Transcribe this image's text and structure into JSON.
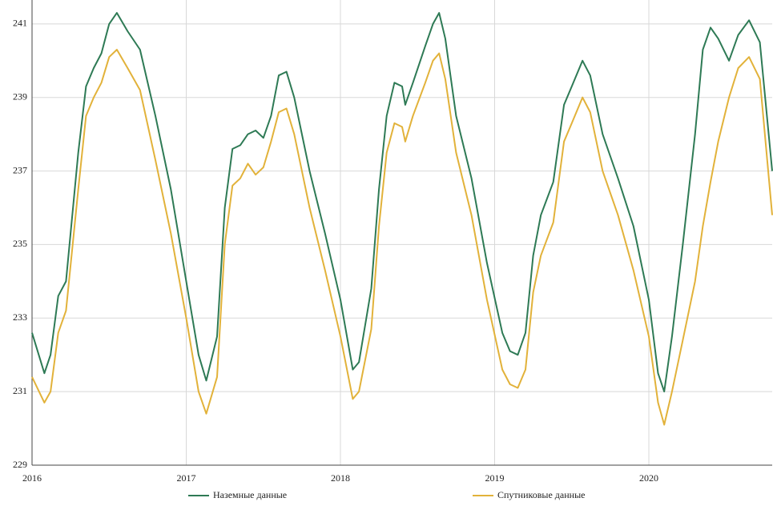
{
  "chart_data": {
    "type": "line",
    "x": [
      2016.0,
      2016.08,
      2016.12,
      2016.17,
      2016.22,
      2016.3,
      2016.35,
      2016.4,
      2016.45,
      2016.5,
      2016.55,
      2016.62,
      2016.7,
      2016.8,
      2016.9,
      2017.0,
      2017.08,
      2017.13,
      2017.2,
      2017.25,
      2017.3,
      2017.35,
      2017.4,
      2017.45,
      2017.5,
      2017.55,
      2017.6,
      2017.65,
      2017.7,
      2017.8,
      2017.9,
      2018.0,
      2018.08,
      2018.12,
      2018.2,
      2018.25,
      2018.3,
      2018.35,
      2018.4,
      2018.42,
      2018.47,
      2018.55,
      2018.6,
      2018.64,
      2018.68,
      2018.75,
      2018.85,
      2018.95,
      2019.05,
      2019.1,
      2019.15,
      2019.2,
      2019.25,
      2019.3,
      2019.38,
      2019.45,
      2019.5,
      2019.57,
      2019.62,
      2019.7,
      2019.8,
      2019.9,
      2020.0,
      2020.06,
      2020.1,
      2020.15,
      2020.22,
      2020.3,
      2020.35,
      2020.4,
      2020.45,
      2020.52,
      2020.58,
      2020.65,
      2020.72,
      2020.8
    ],
    "series": [
      {
        "name": "Наземные данные",
        "color": "#2e7a55",
        "values": [
          232.6,
          231.5,
          232.0,
          233.6,
          234.0,
          237.5,
          239.3,
          239.8,
          240.2,
          241.0,
          241.3,
          240.8,
          240.3,
          238.5,
          236.5,
          234.0,
          232.0,
          231.3,
          232.5,
          236.0,
          237.6,
          237.7,
          238.0,
          238.1,
          237.9,
          238.5,
          239.6,
          239.7,
          239.0,
          237.0,
          235.3,
          233.5,
          231.6,
          231.8,
          233.8,
          236.5,
          238.5,
          239.4,
          239.3,
          238.8,
          239.4,
          240.4,
          241.0,
          241.3,
          240.6,
          238.5,
          236.8,
          234.5,
          232.6,
          232.1,
          232.0,
          232.6,
          234.7,
          235.8,
          236.7,
          238.8,
          239.3,
          240.0,
          239.6,
          238.0,
          236.8,
          235.5,
          233.5,
          231.5,
          231.0,
          232.5,
          235.0,
          238.0,
          240.3,
          240.9,
          240.6,
          240.0,
          240.7,
          241.1,
          240.5,
          237.0
        ]
      },
      {
        "name": "Спутниковые данные",
        "color": "#e2b23a",
        "values": [
          231.4,
          230.7,
          231.0,
          232.6,
          233.2,
          236.5,
          238.5,
          239.0,
          239.4,
          240.1,
          240.3,
          239.8,
          239.2,
          237.3,
          235.3,
          233.0,
          231.0,
          230.4,
          231.4,
          235.0,
          236.6,
          236.8,
          237.2,
          236.9,
          237.1,
          237.8,
          238.6,
          238.7,
          238.0,
          236.0,
          234.3,
          232.5,
          230.8,
          231.0,
          232.7,
          235.5,
          237.5,
          238.3,
          238.2,
          237.8,
          238.5,
          239.4,
          240.0,
          240.2,
          239.5,
          237.5,
          235.8,
          233.5,
          231.6,
          231.2,
          231.1,
          231.6,
          233.7,
          234.7,
          235.6,
          237.8,
          238.3,
          239.0,
          238.6,
          237.0,
          235.8,
          234.3,
          232.5,
          230.7,
          230.1,
          231.0,
          232.4,
          234.0,
          235.5,
          236.7,
          237.8,
          239.0,
          239.8,
          240.1,
          239.5,
          235.8
        ]
      }
    ],
    "xlim": [
      2016,
      2020.8
    ],
    "xticks": [
      2016,
      2017,
      2018,
      2019,
      2020
    ],
    "ylim": [
      229,
      241.65
    ],
    "yticks": [
      229,
      231,
      233,
      235,
      237,
      239,
      241
    ],
    "grid": true,
    "legend": "bottom"
  }
}
